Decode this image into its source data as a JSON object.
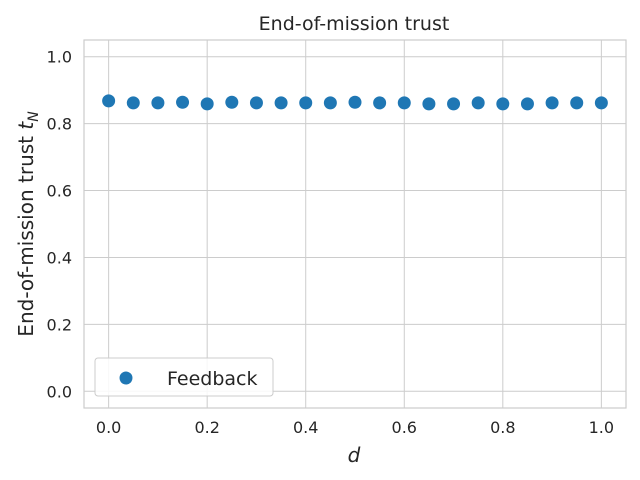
{
  "chart_data": {
    "type": "scatter",
    "title": "End-of-mission trust",
    "xlabel_base": "d",
    "ylabel_base": "End-of-mission trust ",
    "ylabel_var": "t",
    "ylabel_sub": "N",
    "xlim": [
      -0.05,
      1.05
    ],
    "ylim": [
      -0.05,
      1.05
    ],
    "xticks": [
      0.0,
      0.2,
      0.4,
      0.6,
      0.8,
      1.0
    ],
    "xtick_labels": [
      "0.0",
      "0.2",
      "0.4",
      "0.6",
      "0.8",
      "1.0"
    ],
    "yticks": [
      0.0,
      0.2,
      0.4,
      0.6,
      0.8,
      1.0
    ],
    "ytick_labels": [
      "0.0",
      "0.2",
      "0.4",
      "0.6",
      "0.8",
      "1.0"
    ],
    "grid": true,
    "legend_position": "lower-left",
    "series": [
      {
        "name": "Feedback",
        "color": "#1f77b4",
        "x": [
          0.0,
          0.05,
          0.1,
          0.15,
          0.2,
          0.25,
          0.3,
          0.35,
          0.4,
          0.45,
          0.5,
          0.55,
          0.6,
          0.65,
          0.7,
          0.75,
          0.8,
          0.85,
          0.9,
          0.95,
          1.0
        ],
        "y": [
          0.868,
          0.862,
          0.862,
          0.864,
          0.859,
          0.864,
          0.862,
          0.862,
          0.862,
          0.862,
          0.864,
          0.862,
          0.862,
          0.859,
          0.859,
          0.862,
          0.859,
          0.859,
          0.862,
          0.862,
          0.862
        ]
      }
    ]
  }
}
